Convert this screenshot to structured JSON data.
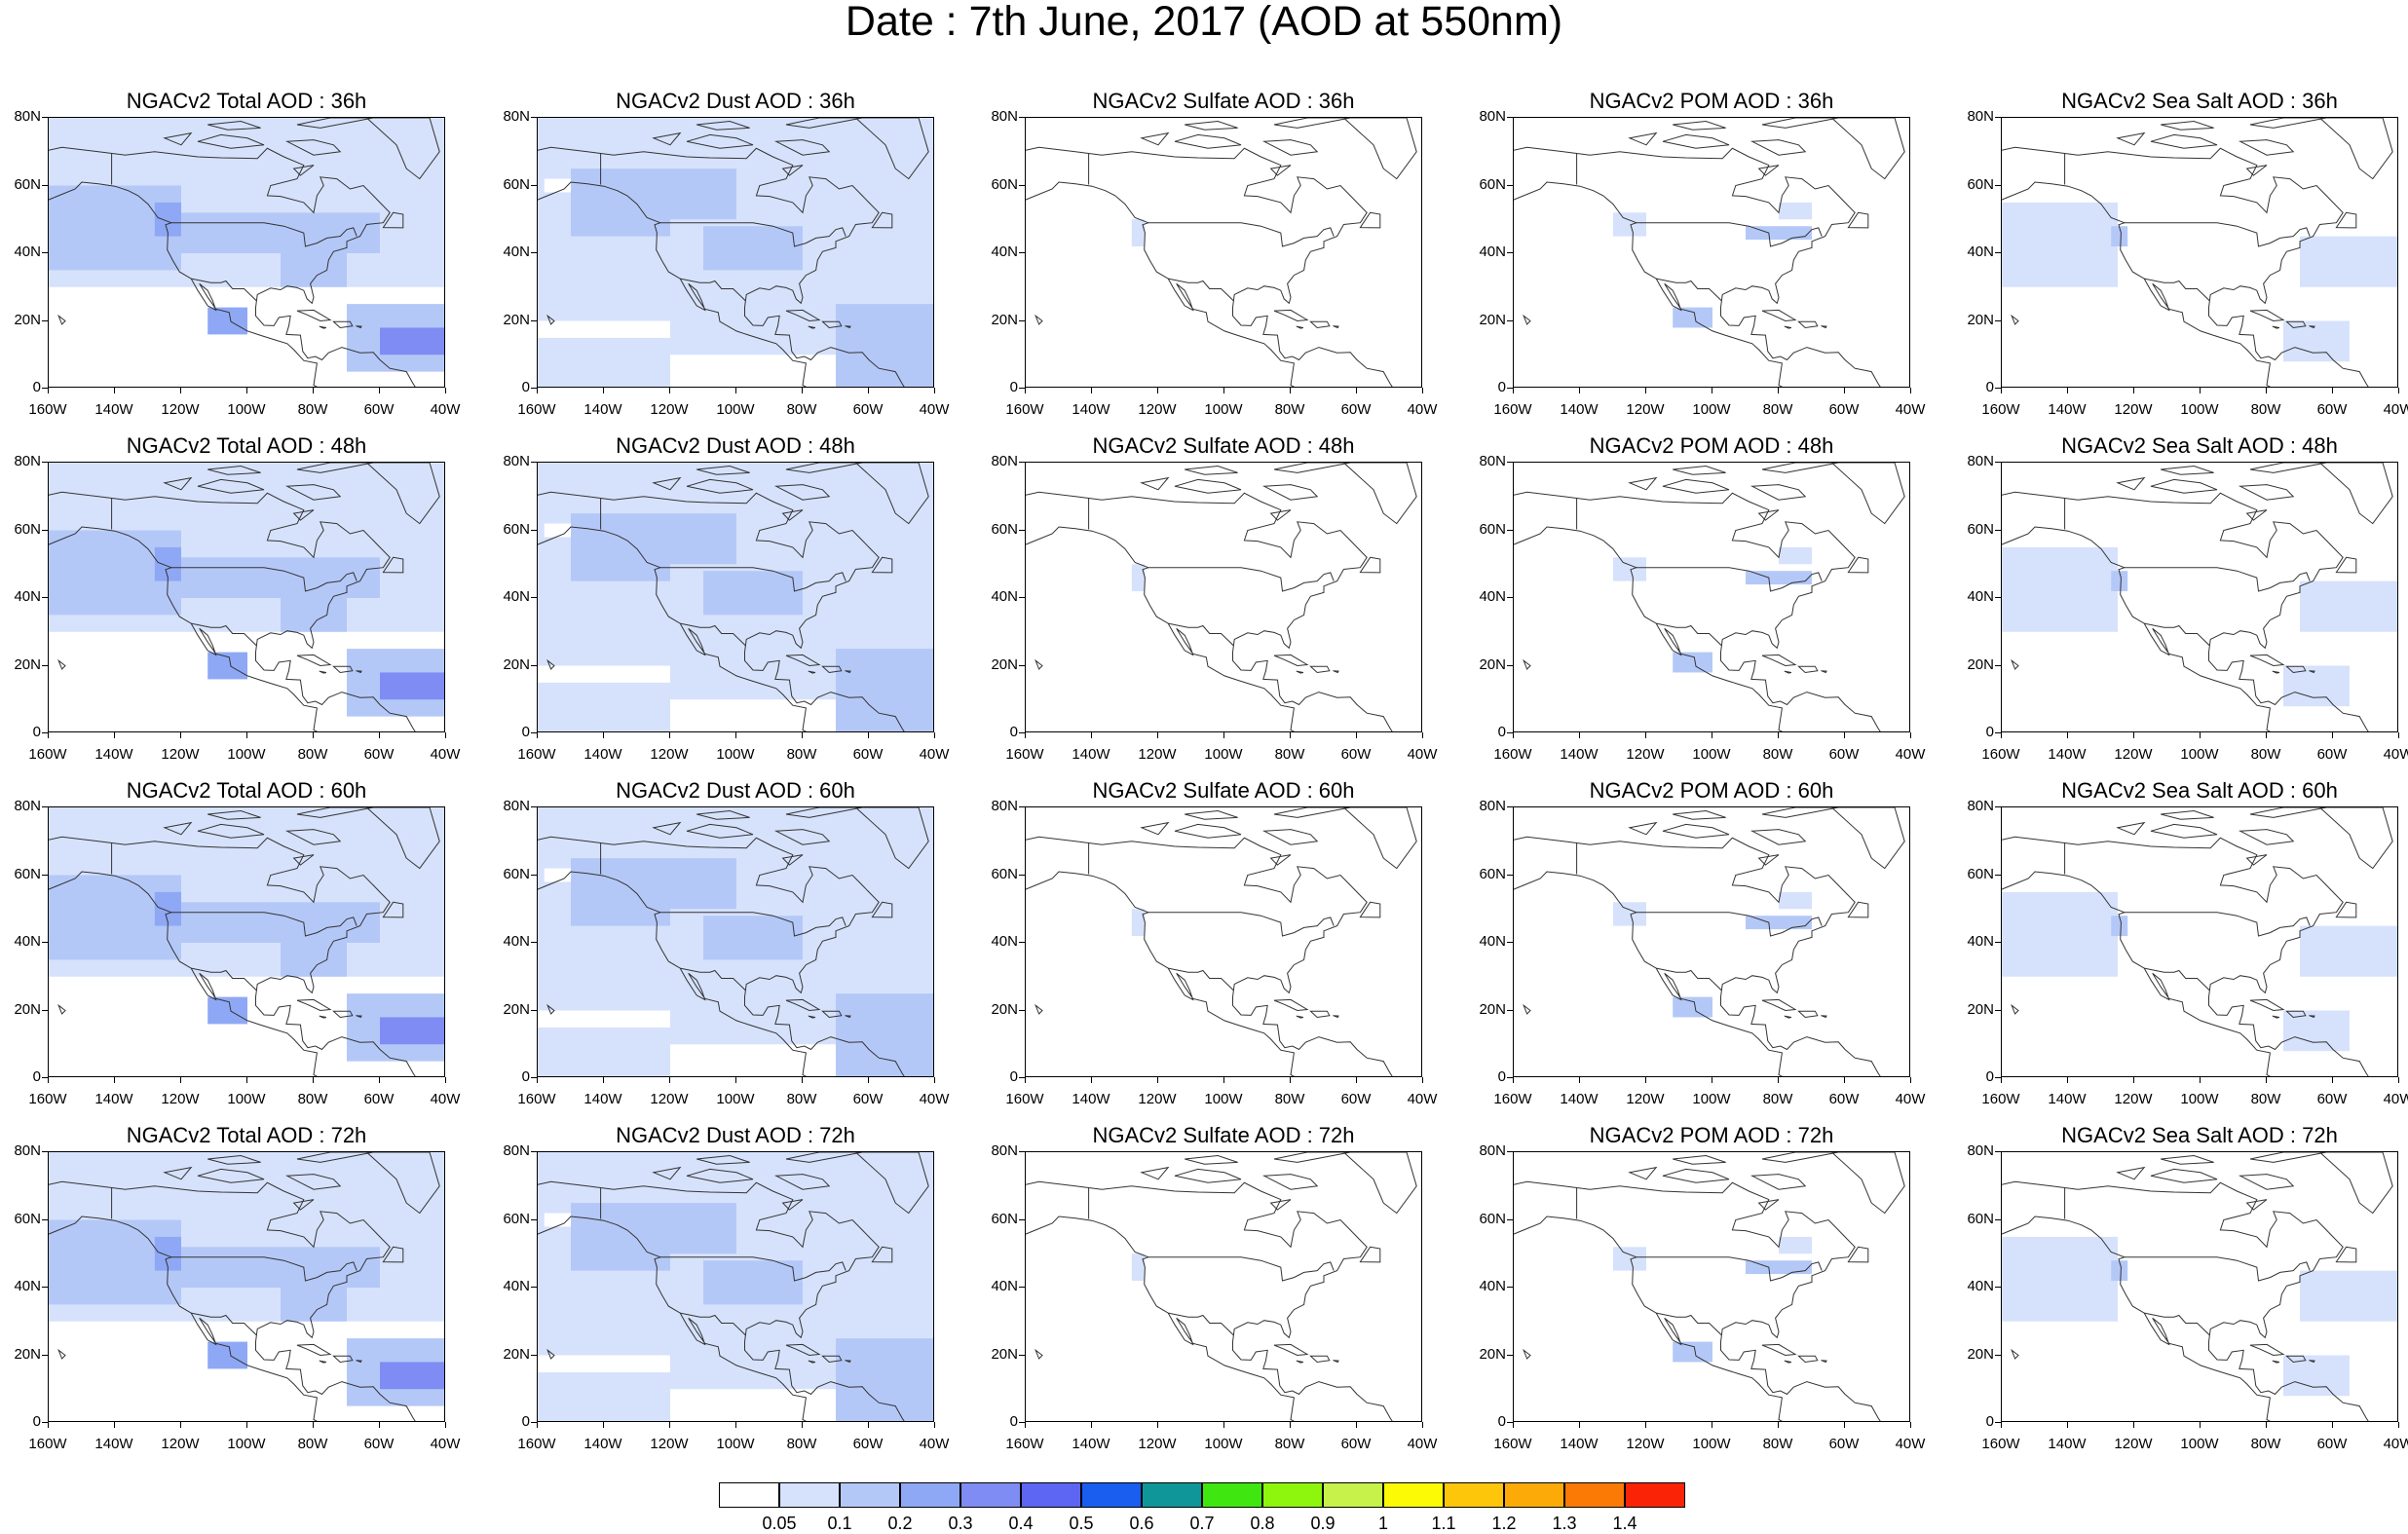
{
  "title": "Date : 7th June, 2017 (AOD at 550nm)",
  "axes": {
    "y_ticks": [
      "80N",
      "60N",
      "40N",
      "20N",
      "0"
    ],
    "x_ticks": [
      "160W",
      "140W",
      "120W",
      "100W",
      "80W",
      "60W",
      "40W"
    ]
  },
  "panels": [
    {
      "title": "NGACv2 Total AOD : 36h",
      "species": "total",
      "lead": 36
    },
    {
      "title": "NGACv2 Dust AOD : 36h",
      "species": "dust",
      "lead": 36
    },
    {
      "title": "NGACv2 Sulfate AOD : 36h",
      "species": "sulfate",
      "lead": 36
    },
    {
      "title": "NGACv2 POM AOD : 36h",
      "species": "pom",
      "lead": 36
    },
    {
      "title": "NGACv2 Sea Salt AOD : 36h",
      "species": "seasalt",
      "lead": 36
    },
    {
      "title": "NGACv2 Total AOD : 48h",
      "species": "total",
      "lead": 48
    },
    {
      "title": "NGACv2 Dust AOD : 48h",
      "species": "dust",
      "lead": 48
    },
    {
      "title": "NGACv2 Sulfate AOD : 48h",
      "species": "sulfate",
      "lead": 48
    },
    {
      "title": "NGACv2 POM AOD : 48h",
      "species": "pom",
      "lead": 48
    },
    {
      "title": "NGACv2 Sea Salt AOD : 48h",
      "species": "seasalt",
      "lead": 48
    },
    {
      "title": "NGACv2 Total AOD : 60h",
      "species": "total",
      "lead": 60
    },
    {
      "title": "NGACv2 Dust AOD : 60h",
      "species": "dust",
      "lead": 60
    },
    {
      "title": "NGACv2 Sulfate AOD : 60h",
      "species": "sulfate",
      "lead": 60
    },
    {
      "title": "NGACv2 POM AOD : 60h",
      "species": "pom",
      "lead": 60
    },
    {
      "title": "NGACv2 Sea Salt AOD : 60h",
      "species": "seasalt",
      "lead": 60
    },
    {
      "title": "NGACv2 Total AOD : 72h",
      "species": "total",
      "lead": 72
    },
    {
      "title": "NGACv2 Dust AOD : 72h",
      "species": "dust",
      "lead": 72
    },
    {
      "title": "NGACv2 Sulfate AOD : 72h",
      "species": "sulfate",
      "lead": 72
    },
    {
      "title": "NGACv2 POM AOD : 72h",
      "species": "pom",
      "lead": 72
    },
    {
      "title": "NGACv2 Sea Salt  AOD : 72h",
      "species": "seasalt",
      "lead": 72
    }
  ],
  "colorbar": {
    "colors": [
      "#ffffff",
      "#d6e2fc",
      "#b4c8f8",
      "#8fa8f5",
      "#7f8cf4",
      "#5c66f2",
      "#1a5ef0",
      "#0f9699",
      "#40e60f",
      "#8ef50c",
      "#c6f24a",
      "#fdfa05",
      "#fdc60a",
      "#fcaa08",
      "#fb7a05",
      "#fb2305"
    ],
    "labels": [
      "0.05",
      "0.1",
      "0.2",
      "0.3",
      "0.4",
      "0.5",
      "0.6",
      "0.7",
      "0.8",
      "0.9",
      "1",
      "1.1",
      "1.2",
      "1.3",
      "1.4"
    ]
  },
  "map_extent": {
    "lon": [
      -160,
      -40
    ],
    "lat": [
      0,
      80
    ]
  }
}
